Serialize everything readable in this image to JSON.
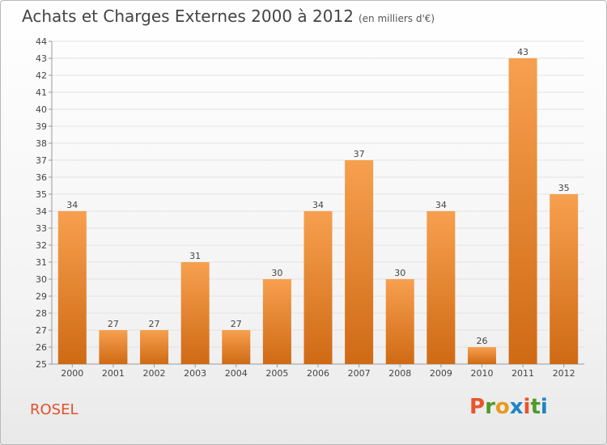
{
  "header": {
    "title": "Achats et Charges Externes 2000 à 2012",
    "unit": "(en milliers d'€)"
  },
  "footer": {
    "town": "ROSEL",
    "logo": "Proxiti"
  },
  "colors": {
    "bar_top": "#f7a04f",
    "bar_bottom": "#cf6a14",
    "town_text": "#e0522b",
    "logo_letters": [
      "#e8552b",
      "#4e9a2a",
      "#e89a1f",
      "#1d84c6",
      "#e8552b",
      "#4e9a2a",
      "#1d84c6"
    ]
  },
  "chart_data": {
    "type": "bar",
    "categories": [
      "2000",
      "2001",
      "2002",
      "2003",
      "2004",
      "2005",
      "2006",
      "2007",
      "2008",
      "2009",
      "2010",
      "2011",
      "2012"
    ],
    "values": [
      34,
      27,
      27,
      31,
      27,
      30,
      34,
      37,
      30,
      34,
      26,
      43,
      35
    ],
    "title": "Achats et Charges Externes 2000 à 2012",
    "ylabel": "(en milliers d'€)",
    "ylim": [
      25,
      44
    ],
    "yticks": [
      25,
      26,
      27,
      28,
      29,
      30,
      31,
      32,
      33,
      34,
      35,
      36,
      37,
      38,
      39,
      40,
      41,
      42,
      43,
      44
    ],
    "grid": true
  }
}
